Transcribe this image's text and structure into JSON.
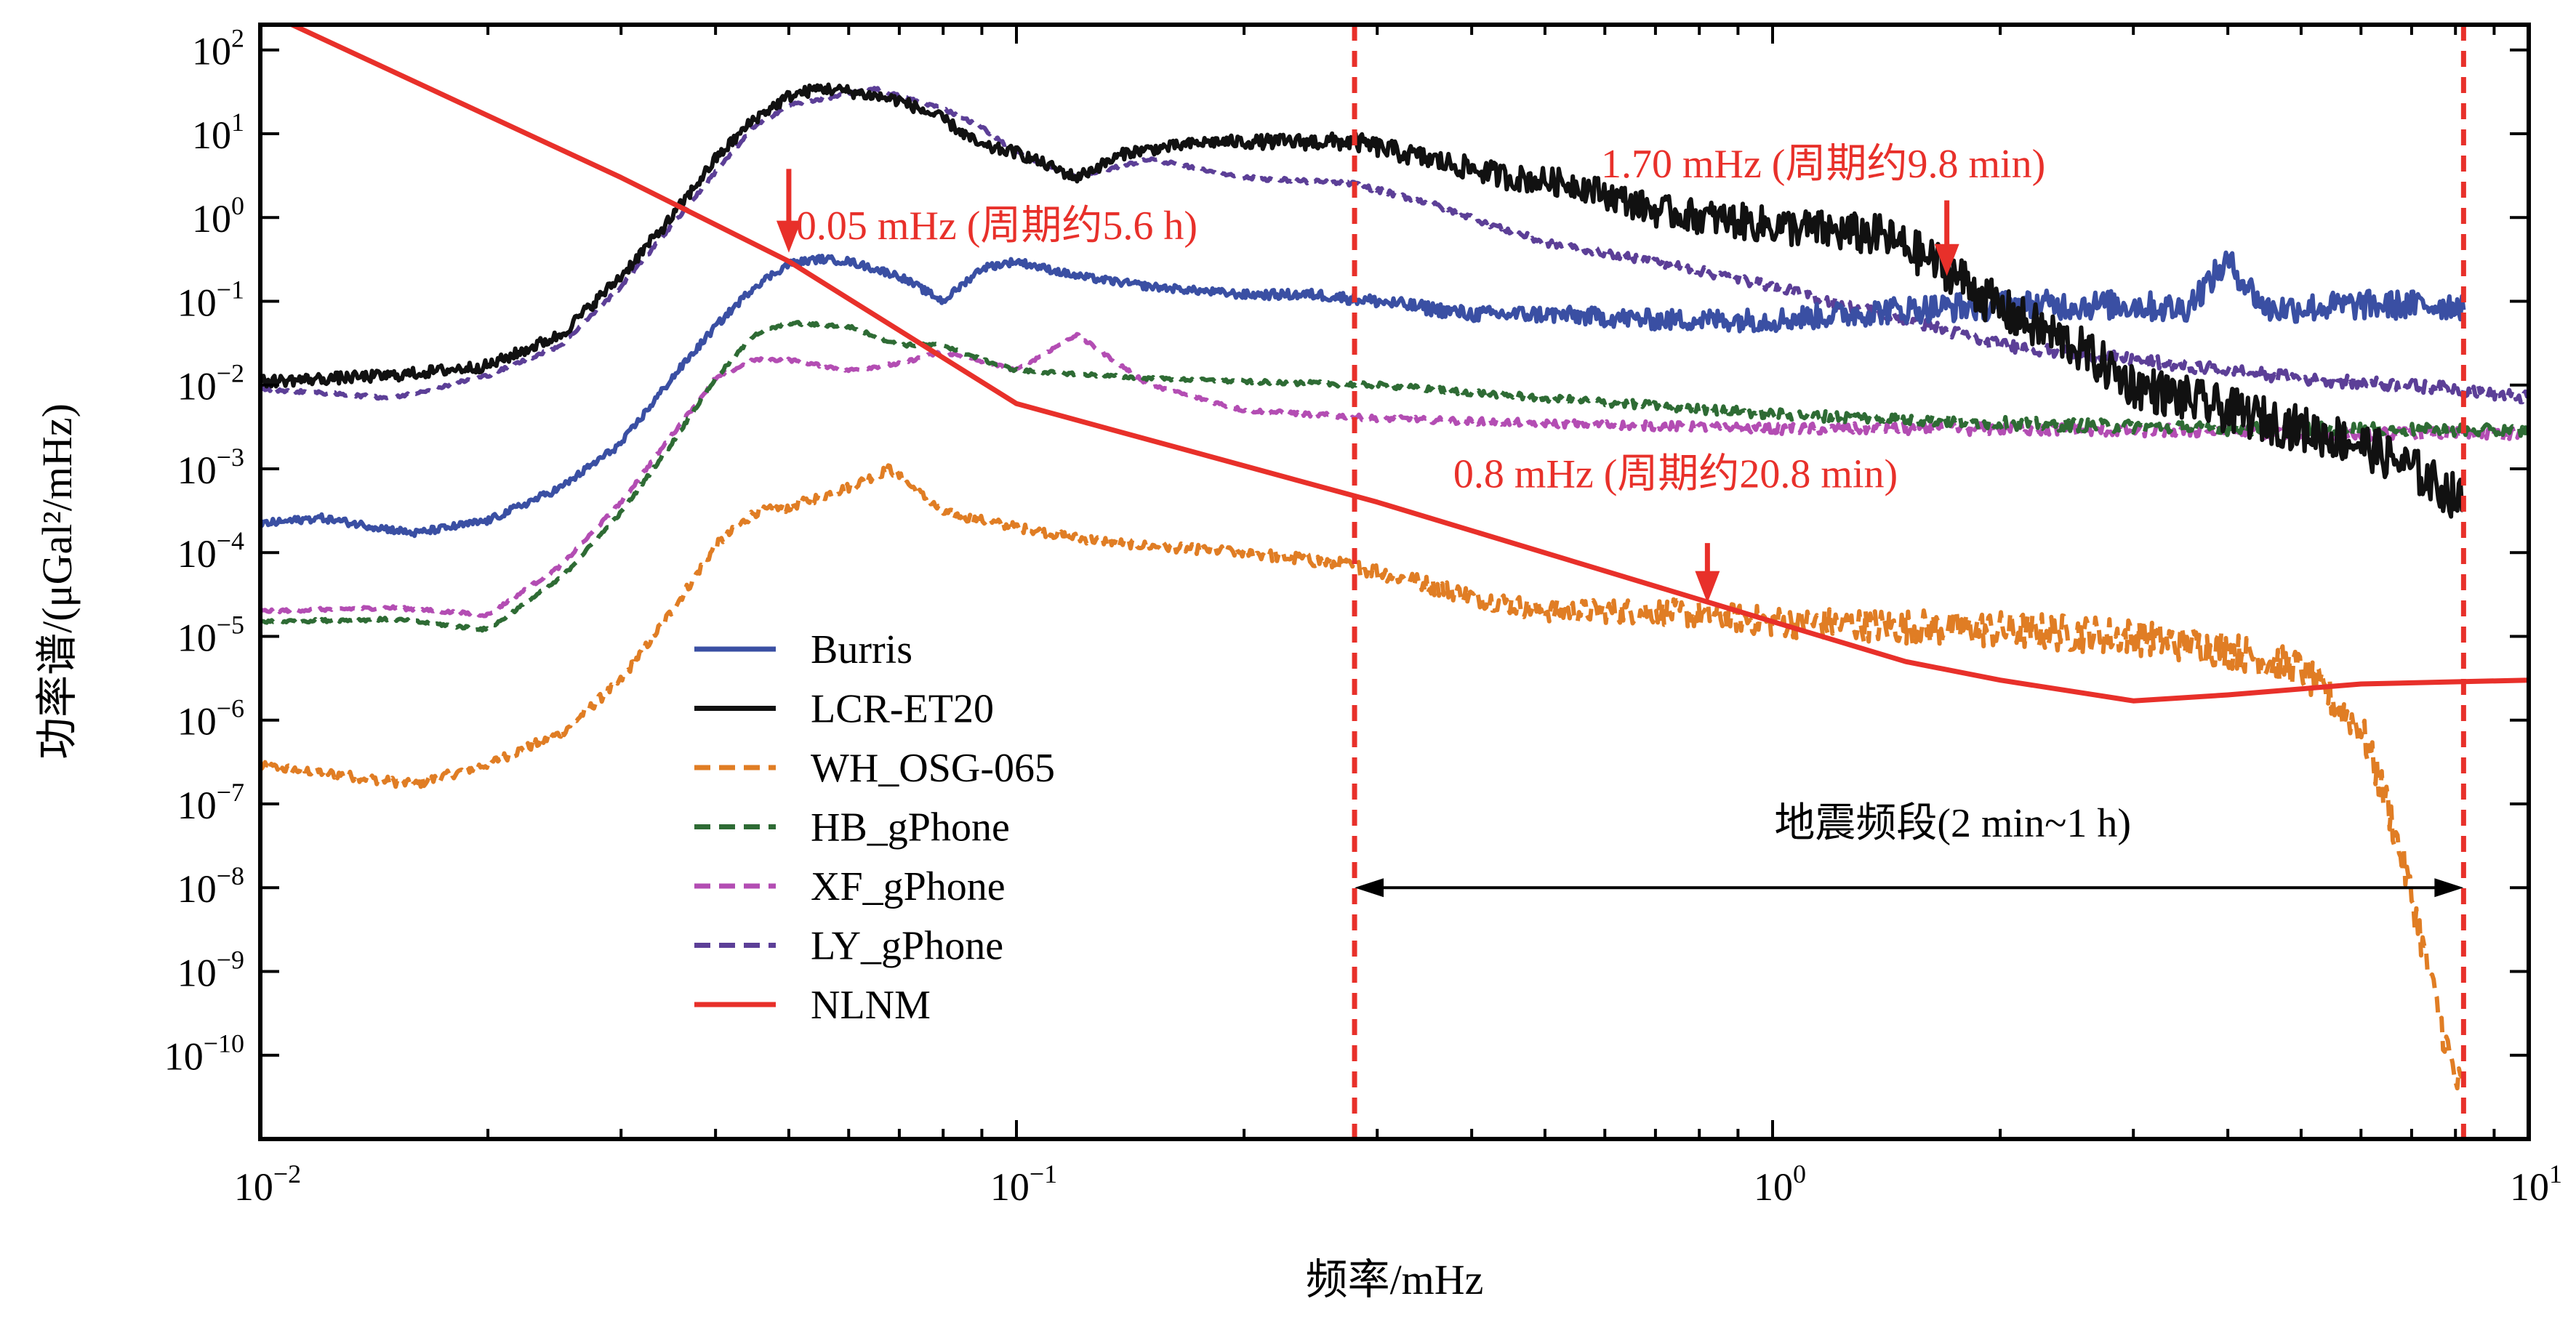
{
  "chart_data": {
    "type": "line",
    "xscale": "log",
    "yscale": "log",
    "xlim": [
      0.01,
      10
    ],
    "ylim": [
      1e-11,
      200
    ],
    "xlabel": "频率/mHz",
    "ylabel": "功率谱/(μGal²/mHz)",
    "x_ticks": [
      {
        "value": 0.01,
        "base": "10",
        "exp": "−2"
      },
      {
        "value": 0.1,
        "base": "10",
        "exp": "−1"
      },
      {
        "value": 1,
        "base": "10",
        "exp": "0"
      },
      {
        "value": 10,
        "base": "10",
        "exp": "1"
      }
    ],
    "y_ticks": [
      {
        "value": 100,
        "base": "10",
        "exp": "2"
      },
      {
        "value": 10,
        "base": "10",
        "exp": "1"
      },
      {
        "value": 1,
        "base": "10",
        "exp": "0"
      },
      {
        "value": 0.1,
        "base": "10",
        "exp": "−1"
      },
      {
        "value": 0.01,
        "base": "10",
        "exp": "−2"
      },
      {
        "value": 0.001,
        "base": "10",
        "exp": "−3"
      },
      {
        "value": 0.0001,
        "base": "10",
        "exp": "−4"
      },
      {
        "value": 1e-05,
        "base": "10",
        "exp": "−5"
      },
      {
        "value": 1e-06,
        "base": "10",
        "exp": "−6"
      },
      {
        "value": 1e-07,
        "base": "10",
        "exp": "−7"
      },
      {
        "value": 1e-08,
        "base": "10",
        "exp": "−8"
      },
      {
        "value": 1e-09,
        "base": "10",
        "exp": "−9"
      },
      {
        "value": 1e-10,
        "base": "10",
        "exp": "−10"
      }
    ],
    "legend_position": "lower-left",
    "series": [
      {
        "name": "Burris",
        "color": "#3a4fa3",
        "dash": "solid",
        "noise": 0.35,
        "points": [
          [
            0.01,
            0.00022
          ],
          [
            0.012,
            0.00026
          ],
          [
            0.016,
            0.00017
          ],
          [
            0.02,
            0.00024
          ],
          [
            0.025,
            0.0006
          ],
          [
            0.03,
            0.002
          ],
          [
            0.035,
            0.012
          ],
          [
            0.04,
            0.05
          ],
          [
            0.045,
            0.15
          ],
          [
            0.05,
            0.28
          ],
          [
            0.055,
            0.32
          ],
          [
            0.06,
            0.3
          ],
          [
            0.07,
            0.2
          ],
          [
            0.08,
            0.1
          ],
          [
            0.09,
            0.25
          ],
          [
            0.1,
            0.3
          ],
          [
            0.12,
            0.2
          ],
          [
            0.15,
            0.15
          ],
          [
            0.2,
            0.12
          ],
          [
            0.25,
            0.12
          ],
          [
            0.3,
            0.1
          ],
          [
            0.4,
            0.07
          ],
          [
            0.5,
            0.07
          ],
          [
            0.7,
            0.06
          ],
          [
            1.0,
            0.06
          ],
          [
            1.5,
            0.08
          ],
          [
            2.0,
            0.09
          ],
          [
            3.0,
            0.09
          ],
          [
            3.5,
            0.08
          ],
          [
            4.0,
            0.3
          ],
          [
            4.5,
            0.08
          ],
          [
            6.0,
            0.09
          ],
          [
            8.2,
            0.09
          ]
        ]
      },
      {
        "name": "LCR-ET20",
        "color": "#111111",
        "dash": "solid",
        "noise": 0.55,
        "points": [
          [
            0.01,
            0.011
          ],
          [
            0.015,
            0.013
          ],
          [
            0.02,
            0.017
          ],
          [
            0.025,
            0.04
          ],
          [
            0.03,
            0.2
          ],
          [
            0.035,
            1.0
          ],
          [
            0.04,
            5.0
          ],
          [
            0.045,
            15
          ],
          [
            0.05,
            28
          ],
          [
            0.055,
            35
          ],
          [
            0.06,
            32
          ],
          [
            0.07,
            25
          ],
          [
            0.08,
            15
          ],
          [
            0.09,
            7
          ],
          [
            0.1,
            6
          ],
          [
            0.12,
            3
          ],
          [
            0.14,
            6
          ],
          [
            0.18,
            8
          ],
          [
            0.22,
            8
          ],
          [
            0.28,
            8
          ],
          [
            0.35,
            5
          ],
          [
            0.45,
            3
          ],
          [
            0.55,
            2.5
          ],
          [
            0.7,
            1.2
          ],
          [
            1.0,
            0.8
          ],
          [
            1.4,
            0.6
          ],
          [
            1.7,
            0.25
          ],
          [
            2.0,
            0.08
          ],
          [
            2.5,
            0.03
          ],
          [
            3.0,
            0.01
          ],
          [
            4.0,
            0.005
          ],
          [
            5.0,
            0.003
          ],
          [
            6.0,
            0.002
          ],
          [
            7.0,
            0.001
          ],
          [
            8.2,
            0.0004
          ]
        ]
      },
      {
        "name": "WH_OSG-065",
        "color": "#e07d24",
        "dash": "dashed",
        "noise": 0.45,
        "points": [
          [
            0.01,
            2.8e-07
          ],
          [
            0.012,
            2.4e-07
          ],
          [
            0.016,
            1.7e-07
          ],
          [
            0.02,
            3e-07
          ],
          [
            0.025,
            7e-07
          ],
          [
            0.03,
            3e-06
          ],
          [
            0.035,
            2e-05
          ],
          [
            0.04,
            0.00012
          ],
          [
            0.045,
            0.0003
          ],
          [
            0.05,
            0.00035
          ],
          [
            0.06,
            0.0006
          ],
          [
            0.068,
            0.001
          ],
          [
            0.08,
            0.0003
          ],
          [
            0.1,
            0.0002
          ],
          [
            0.12,
            0.00015
          ],
          [
            0.15,
            0.00012
          ],
          [
            0.2,
            0.0001
          ],
          [
            0.25,
            8e-05
          ],
          [
            0.3,
            6e-05
          ],
          [
            0.4,
            3e-05
          ],
          [
            0.5,
            2e-05
          ],
          [
            0.7,
            2e-05
          ],
          [
            1.0,
            1.5e-05
          ],
          [
            1.5,
            1.3e-05
          ],
          [
            2.0,
            1.2e-05
          ],
          [
            3.0,
            1e-05
          ],
          [
            4.0,
            7e-06
          ],
          [
            5.0,
            4e-06
          ],
          [
            6.0,
            8e-07
          ],
          [
            6.5,
            1e-07
          ],
          [
            7.0,
            8e-09
          ],
          [
            7.5,
            5e-10
          ],
          [
            8.0,
            5e-11
          ],
          [
            8.2,
            4e-11
          ]
        ]
      },
      {
        "name": "HB_gPhone",
        "color": "#2e6b34",
        "dash": "dashed",
        "noise": 0.15,
        "points": [
          [
            0.01,
            1.5e-05
          ],
          [
            0.015,
            1.6e-05
          ],
          [
            0.02,
            1.2e-05
          ],
          [
            0.025,
            5e-05
          ],
          [
            0.03,
            0.0003
          ],
          [
            0.035,
            0.002
          ],
          [
            0.04,
            0.012
          ],
          [
            0.045,
            0.04
          ],
          [
            0.05,
            0.055
          ],
          [
            0.06,
            0.05
          ],
          [
            0.07,
            0.03
          ],
          [
            0.08,
            0.03
          ],
          [
            0.09,
            0.02
          ],
          [
            0.1,
            0.015
          ],
          [
            0.15,
            0.012
          ],
          [
            0.2,
            0.011
          ],
          [
            0.3,
            0.01
          ],
          [
            0.5,
            0.007
          ],
          [
            1.0,
            0.0045
          ],
          [
            2.0,
            0.0035
          ],
          [
            4.0,
            0.003
          ],
          [
            6.0,
            0.003
          ],
          [
            10,
            0.0028
          ]
        ]
      },
      {
        "name": "XF_gPhone",
        "color": "#b34db3",
        "dash": "dashed",
        "noise": 0.15,
        "points": [
          [
            0.01,
            2e-05
          ],
          [
            0.015,
            2.2e-05
          ],
          [
            0.02,
            1.8e-05
          ],
          [
            0.025,
            7e-05
          ],
          [
            0.03,
            0.0004
          ],
          [
            0.035,
            0.0025
          ],
          [
            0.04,
            0.012
          ],
          [
            0.045,
            0.02
          ],
          [
            0.05,
            0.02
          ],
          [
            0.06,
            0.015
          ],
          [
            0.07,
            0.018
          ],
          [
            0.08,
            0.025
          ],
          [
            0.1,
            0.015
          ],
          [
            0.12,
            0.04
          ],
          [
            0.15,
            0.01
          ],
          [
            0.2,
            0.005
          ],
          [
            0.3,
            0.004
          ],
          [
            0.5,
            0.0035
          ],
          [
            1.0,
            0.003
          ],
          [
            2.0,
            0.003
          ],
          [
            4.0,
            0.0028
          ],
          [
            6.0,
            0.0026
          ],
          [
            10,
            0.0026
          ]
        ]
      },
      {
        "name": "LY_gPhone",
        "color": "#5c3f97",
        "dash": "dashed",
        "noise": 0.15,
        "points": [
          [
            0.01,
            0.009
          ],
          [
            0.015,
            0.007
          ],
          [
            0.02,
            0.013
          ],
          [
            0.025,
            0.03
          ],
          [
            0.03,
            0.15
          ],
          [
            0.035,
            0.8
          ],
          [
            0.04,
            3.5
          ],
          [
            0.045,
            12
          ],
          [
            0.05,
            22
          ],
          [
            0.06,
            30
          ],
          [
            0.065,
            35
          ],
          [
            0.07,
            28
          ],
          [
            0.08,
            20
          ],
          [
            0.09,
            12
          ],
          [
            0.1,
            6
          ],
          [
            0.12,
            3
          ],
          [
            0.15,
            5
          ],
          [
            0.2,
            3
          ],
          [
            0.28,
            2.5
          ],
          [
            0.35,
            1.5
          ],
          [
            0.5,
            0.5
          ],
          [
            0.7,
            0.3
          ],
          [
            1.0,
            0.15
          ],
          [
            1.5,
            0.06
          ],
          [
            2.0,
            0.03
          ],
          [
            3.0,
            0.02
          ],
          [
            5.0,
            0.012
          ],
          [
            8.0,
            0.009
          ],
          [
            10,
            0.007
          ]
        ]
      },
      {
        "name": "NLNM",
        "color": "#e8302a",
        "dash": "solid",
        "noise": 0,
        "points": [
          [
            0.01,
            300
          ],
          [
            0.03,
            3
          ],
          [
            0.05,
            0.3
          ],
          [
            0.1,
            0.006
          ],
          [
            0.3,
            0.0004
          ],
          [
            1.0,
            1.5e-05
          ],
          [
            1.5,
            5e-06
          ],
          [
            2.0,
            3e-06
          ],
          [
            3.0,
            1.7e-06
          ],
          [
            4.0,
            2e-06
          ],
          [
            6.0,
            2.7e-06
          ],
          [
            10,
            3e-06
          ]
        ]
      }
    ],
    "vlines": [
      {
        "x": 0.28,
        "color": "#e8302a"
      },
      {
        "x": 8.2,
        "color": "#e8302a"
      }
    ],
    "band": {
      "x1": 0.28,
      "x2": 8.2,
      "y": 1e-08,
      "label": "地震频段(2 min~1 h)"
    },
    "annotations": [
      {
        "text": "0.05 mHz (周期约5.6 h)",
        "arrow_x": 0.05,
        "arrow_from": 3.8,
        "arrow_to": 0.38,
        "text_x": 0.05,
        "text_y": 0.55
      },
      {
        "text": "1.70 mHz (周期约9.8 min)",
        "arrow_x": 1.7,
        "arrow_from": 1.6,
        "arrow_to": 0.2,
        "text_x": 0.58,
        "text_y": 3.0
      },
      {
        "text": "0.8 mHz (周期约20.8 min)",
        "arrow_x": 0.82,
        "arrow_from": 0.00013,
        "arrow_to": 2.5e-05,
        "text_x": 0.37,
        "text_y": 0.0006
      }
    ]
  }
}
